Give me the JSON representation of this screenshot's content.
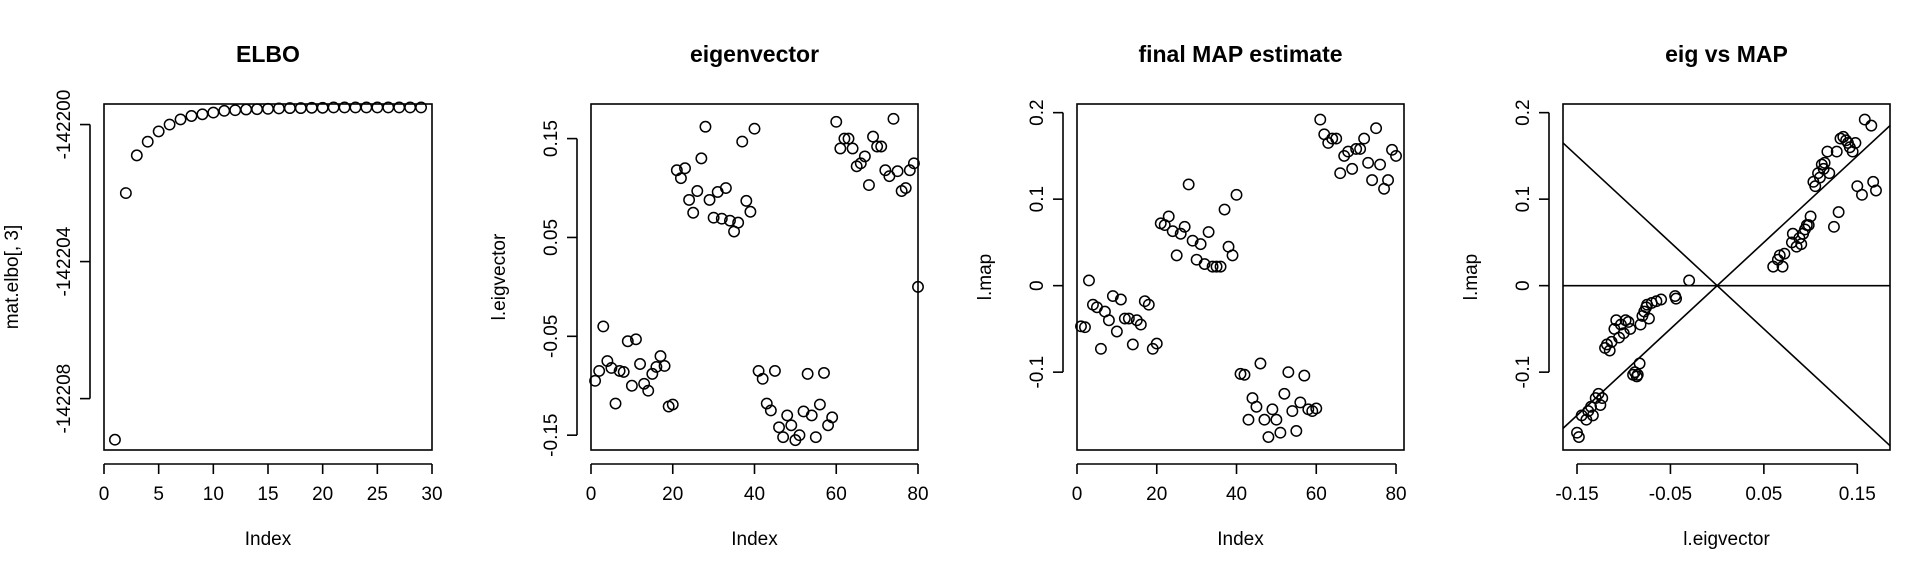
{
  "chart_data": [
    {
      "type": "scatter",
      "title": "ELBO",
      "xlabel": "Index",
      "ylabel": "mat.elbo[, 3]",
      "xlim": [
        0,
        30
      ],
      "ylim": [
        -142209.5,
        -142199.4
      ],
      "xticks": [
        0,
        5,
        10,
        15,
        20,
        25,
        30
      ],
      "yticks": [
        -142208,
        -142204,
        -142200
      ],
      "x": [
        1,
        2,
        3,
        4,
        5,
        6,
        7,
        8,
        9,
        10,
        11,
        12,
        13,
        14,
        15,
        16,
        17,
        18,
        19,
        20,
        21,
        22,
        23,
        24,
        25,
        26,
        27,
        28,
        29
      ],
      "y": [
        -142209.2,
        -142202.0,
        -142200.9,
        -142200.5,
        -142200.2,
        -142200.0,
        -142199.85,
        -142199.75,
        -142199.7,
        -142199.65,
        -142199.6,
        -142199.58,
        -142199.56,
        -142199.55,
        -142199.54,
        -142199.53,
        -142199.52,
        -142199.52,
        -142199.51,
        -142199.51,
        -142199.5,
        -142199.5,
        -142199.5,
        -142199.5,
        -142199.5,
        -142199.5,
        -142199.5,
        -142199.5,
        -142199.5
      ]
    },
    {
      "type": "scatter",
      "title": "eigenvector",
      "xlabel": "Index",
      "ylabel": "l.eigvector",
      "xlim": [
        0,
        80
      ],
      "ylim": [
        -0.165,
        0.185
      ],
      "xticks": [
        0,
        20,
        40,
        60,
        80
      ],
      "yticks": [
        -0.15,
        -0.05,
        0.05,
        0.15
      ],
      "x": [
        1,
        2,
        3,
        4,
        5,
        6,
        7,
        8,
        9,
        10,
        11,
        12,
        13,
        14,
        15,
        16,
        17,
        18,
        19,
        20,
        21,
        22,
        23,
        24,
        25,
        26,
        27,
        28,
        29,
        30,
        31,
        32,
        33,
        34,
        35,
        36,
        37,
        38,
        39,
        40,
        41,
        42,
        43,
        44,
        45,
        46,
        47,
        48,
        49,
        50,
        51,
        52,
        53,
        54,
        55,
        56,
        57,
        58,
        59,
        60,
        61,
        62,
        63,
        64,
        65,
        66,
        67,
        68,
        69,
        70,
        71,
        72,
        73,
        74,
        75,
        76,
        77,
        78,
        79,
        80
      ],
      "y": [
        -0.095,
        -0.085,
        -0.04,
        -0.075,
        -0.082,
        -0.118,
        -0.085,
        -0.086,
        -0.055,
        -0.1,
        -0.053,
        -0.078,
        -0.098,
        -0.105,
        -0.088,
        -0.081,
        -0.07,
        -0.08,
        -0.121,
        -0.119,
        0.118,
        0.11,
        0.12,
        0.088,
        0.075,
        0.097,
        0.13,
        0.162,
        0.088,
        0.07,
        0.096,
        0.069,
        0.1,
        0.067,
        0.056,
        0.065,
        0.147,
        0.087,
        0.076,
        0.16,
        -0.085,
        -0.093,
        -0.118,
        -0.125,
        -0.085,
        -0.142,
        -0.152,
        -0.13,
        -0.14,
        -0.155,
        -0.15,
        -0.126,
        -0.088,
        -0.13,
        -0.152,
        -0.119,
        -0.087,
        -0.14,
        -0.132,
        0.167,
        0.14,
        0.15,
        0.15,
        0.14,
        0.122,
        0.125,
        0.132,
        0.103,
        0.152,
        0.142,
        0.142,
        0.118,
        0.112,
        0.17,
        0.117,
        0.097,
        0.1,
        0.118,
        0.125,
        0.0
      ]
    },
    {
      "type": "scatter",
      "title": "final MAP estimate",
      "xlabel": "Index",
      "ylabel": "l.map",
      "xlim": [
        0,
        82
      ],
      "ylim": [
        -0.19,
        0.21
      ],
      "xticks": [
        0,
        20,
        40,
        60,
        80
      ],
      "yticks": [
        -0.1,
        0.0,
        0.1,
        0.2
      ],
      "x": [
        1,
        2,
        3,
        4,
        5,
        6,
        7,
        8,
        9,
        10,
        11,
        12,
        13,
        14,
        15,
        16,
        17,
        18,
        19,
        20,
        21,
        22,
        23,
        24,
        25,
        26,
        27,
        28,
        29,
        30,
        31,
        32,
        33,
        34,
        35,
        36,
        37,
        38,
        39,
        40,
        41,
        42,
        43,
        44,
        45,
        46,
        47,
        48,
        49,
        50,
        51,
        52,
        53,
        54,
        55,
        56,
        57,
        58,
        59,
        60,
        61,
        62,
        63,
        64,
        65,
        66,
        67,
        68,
        69,
        70,
        71,
        72,
        73,
        74,
        75,
        76,
        77,
        78,
        79,
        80
      ],
      "y": [
        -0.047,
        -0.048,
        0.006,
        -0.022,
        -0.025,
        -0.073,
        -0.03,
        -0.04,
        -0.012,
        -0.053,
        -0.016,
        -0.038,
        -0.038,
        -0.068,
        -0.04,
        -0.045,
        -0.018,
        -0.022,
        -0.073,
        -0.067,
        0.072,
        0.07,
        0.08,
        0.063,
        0.035,
        0.06,
        0.068,
        0.117,
        0.052,
        0.03,
        0.048,
        0.025,
        0.062,
        0.022,
        0.022,
        0.022,
        0.088,
        0.045,
        0.035,
        0.105,
        -0.102,
        -0.103,
        -0.155,
        -0.13,
        -0.14,
        -0.09,
        -0.155,
        -0.175,
        -0.143,
        -0.155,
        -0.17,
        -0.125,
        -0.1,
        -0.145,
        -0.168,
        -0.135,
        -0.104,
        -0.143,
        -0.145,
        -0.142,
        0.192,
        0.175,
        0.165,
        0.17,
        0.17,
        0.13,
        0.15,
        0.155,
        0.135,
        0.158,
        0.158,
        0.17,
        0.142,
        0.122,
        0.182,
        0.14,
        0.112,
        0.122,
        0.157,
        0.15
      ]
    },
    {
      "type": "scatter",
      "title": "eig vs MAP",
      "xlabel": "l.eigvector",
      "ylabel": "l.map",
      "xlim": [
        -0.165,
        0.185
      ],
      "ylim": [
        -0.19,
        0.21
      ],
      "xticks": [
        -0.15,
        -0.05,
        0.05,
        0.15
      ],
      "yticks": [
        -0.1,
        0.0,
        0.1,
        0.2
      ],
      "reference_lines": [
        {
          "intercept": 0,
          "slope": 0
        },
        {
          "intercept": 0,
          "slope": 1
        },
        {
          "intercept": 0,
          "slope": -1
        }
      ],
      "x": [
        -0.15,
        -0.148,
        -0.145,
        -0.14,
        -0.138,
        -0.135,
        -0.133,
        -0.13,
        -0.127,
        -0.125,
        -0.123,
        -0.12,
        -0.118,
        -0.115,
        -0.113,
        -0.11,
        -0.108,
        -0.105,
        -0.103,
        -0.1,
        -0.098,
        -0.095,
        -0.093,
        -0.09,
        -0.088,
        -0.086,
        -0.085,
        -0.083,
        -0.082,
        -0.08,
        -0.078,
        -0.076,
        -0.075,
        -0.073,
        -0.07,
        -0.065,
        -0.06,
        -0.045,
        -0.044,
        -0.03,
        0.06,
        0.065,
        0.067,
        0.07,
        0.072,
        0.08,
        0.081,
        0.085,
        0.088,
        0.09,
        0.092,
        0.094,
        0.096,
        0.098,
        0.1,
        0.103,
        0.105,
        0.108,
        0.11,
        0.112,
        0.114,
        0.115,
        0.118,
        0.12,
        0.125,
        0.128,
        0.13,
        0.132,
        0.135,
        0.138,
        0.14,
        0.142,
        0.145,
        0.148,
        0.15,
        0.155,
        0.158,
        0.165,
        0.167,
        0.17
      ],
      "y": [
        -0.17,
        -0.175,
        -0.15,
        -0.155,
        -0.145,
        -0.14,
        -0.15,
        -0.13,
        -0.125,
        -0.138,
        -0.13,
        -0.072,
        -0.068,
        -0.075,
        -0.065,
        -0.05,
        -0.04,
        -0.06,
        -0.045,
        -0.055,
        -0.04,
        -0.042,
        -0.05,
        -0.103,
        -0.1,
        -0.105,
        -0.103,
        -0.09,
        -0.045,
        -0.035,
        -0.03,
        -0.025,
        -0.022,
        -0.038,
        -0.02,
        -0.018,
        -0.016,
        -0.012,
        -0.015,
        0.006,
        0.022,
        0.03,
        0.035,
        0.022,
        0.037,
        0.05,
        0.06,
        0.045,
        0.055,
        0.048,
        0.06,
        0.065,
        0.07,
        0.07,
        0.08,
        0.12,
        0.115,
        0.13,
        0.125,
        0.14,
        0.135,
        0.142,
        0.155,
        0.13,
        0.068,
        0.155,
        0.085,
        0.17,
        0.172,
        0.168,
        0.165,
        0.16,
        0.155,
        0.165,
        0.115,
        0.105,
        0.192,
        0.185,
        0.12,
        0.11
      ]
    }
  ]
}
